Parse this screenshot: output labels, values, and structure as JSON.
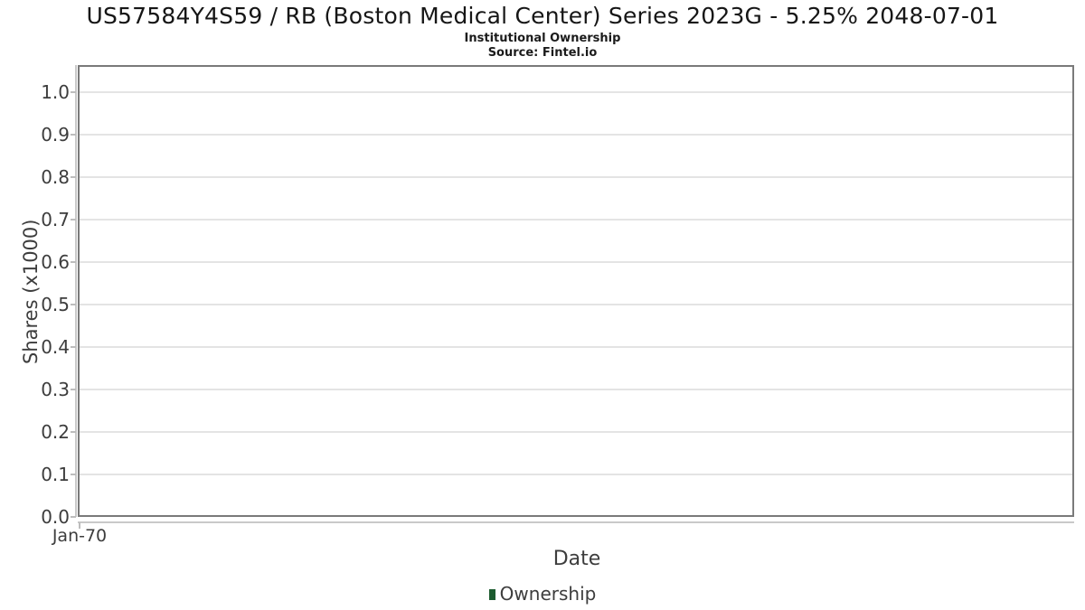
{
  "figure": {
    "title": "US57584Y4S59 / RB (Boston Medical Center) Series 2023G - 5.25% 2048-07-01",
    "subtitle": "Institutional Ownership",
    "source": "Source: Fintel.io"
  },
  "chart_data": {
    "type": "line",
    "title": "US57584Y4S59 / RB (Boston Medical Center) Series 2023G - 5.25% 2048-07-01",
    "subtitle": "Institutional Ownership",
    "source": "Source: Fintel.io",
    "xlabel": "Date",
    "ylabel": "Shares (x1000)",
    "x_tick_labels": [
      "Jan-70"
    ],
    "y_ticks": [
      0.0,
      0.1,
      0.2,
      0.3,
      0.4,
      0.5,
      0.6,
      0.7,
      0.8,
      0.9,
      1.0
    ],
    "y_tick_labels": [
      "0.0",
      "0.1",
      "0.2",
      "0.3",
      "0.4",
      "0.5",
      "0.6",
      "0.7",
      "0.8",
      "0.9",
      "1.0"
    ],
    "ylim": [
      0.0,
      1.06
    ],
    "grid": "horizontal",
    "legend": {
      "position": "bottom-center",
      "entries": [
        {
          "label": "Ownership",
          "color": "#1c5b2f"
        }
      ]
    },
    "series": [
      {
        "name": "Ownership",
        "color": "#1c5b2f",
        "x": [],
        "values": []
      }
    ]
  },
  "appearance": {
    "plot_border_color": "#7a7a7a",
    "gridline_color": "#e4e4e4",
    "axis_line_color": "#c9c9c9",
    "tick_mark_color": "#bdbdbd",
    "axis_text_color": "#3d3d3d",
    "title_color": "#161616",
    "background_color": "#ffffff"
  }
}
